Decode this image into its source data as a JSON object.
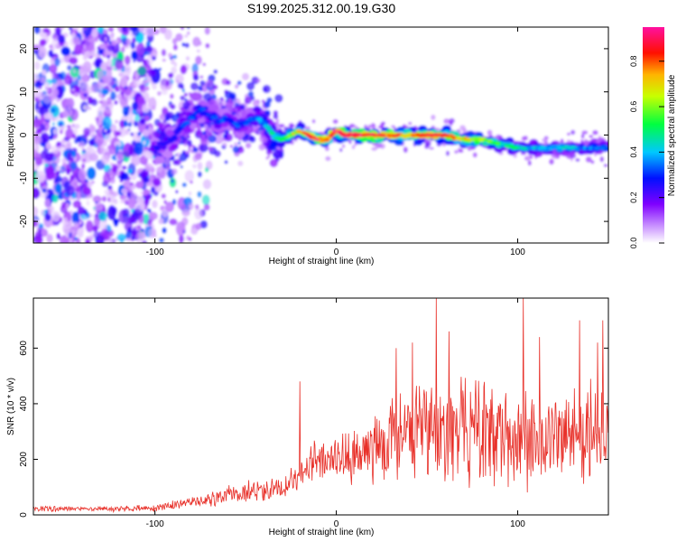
{
  "figure": {
    "title": "S199.2025.312.00.19.G30"
  },
  "chart_data": [
    {
      "type": "heatmap",
      "name": "spectrogram",
      "xlabel": "Height of straight line (km)",
      "ylabel": "Frequency (Hz)",
      "xlim": [
        -167,
        150
      ],
      "ylim": [
        -25,
        25
      ],
      "xticks": [
        -100,
        0,
        100
      ],
      "yticks": [
        -20,
        -10,
        0,
        10,
        20
      ],
      "colorbar": {
        "label": "Normalized spectral amplitude",
        "range": [
          0,
          0.95
        ],
        "ticks": [
          "0.0",
          "0.2",
          "0.4",
          "0.6",
          "0.8"
        ],
        "tick_values": [
          0.0,
          0.2,
          0.4,
          0.6,
          0.8
        ],
        "stops": [
          "#ffffff",
          "#7f00ff",
          "#0000ff",
          "#00ffff",
          "#00ff00",
          "#ffff00",
          "#ff0000",
          "#ff00a0"
        ]
      },
      "noise_region": {
        "x_range": [
          -167,
          -100
        ],
        "amplitude": 0.15
      },
      "track": {
        "description_free": true,
        "x": [
          -100,
          -95,
          -90,
          -85,
          -80,
          -75,
          -70,
          -65,
          -60,
          -55,
          -50,
          -45,
          -40,
          -35,
          -30,
          -25,
          -20,
          -15,
          -10,
          -5,
          0,
          5,
          10,
          20,
          30,
          40,
          50,
          60,
          70,
          80,
          90,
          100,
          110,
          120,
          130,
          140,
          150
        ],
        "freq": [
          -3,
          -2,
          -1,
          2,
          4,
          6,
          5,
          3,
          4,
          2,
          3,
          4,
          3,
          0,
          -1,
          0,
          1,
          0,
          -1,
          -1,
          1,
          0,
          0,
          0,
          0,
          0,
          0,
          0,
          -1,
          -1,
          -2,
          -3,
          -3,
          -3,
          -3,
          -3,
          -3
        ],
        "amplitude": [
          0.25,
          0.25,
          0.25,
          0.3,
          0.3,
          0.3,
          0.3,
          0.3,
          0.3,
          0.3,
          0.3,
          0.35,
          0.35,
          0.45,
          0.5,
          0.6,
          0.7,
          0.8,
          0.85,
          0.8,
          0.9,
          0.9,
          0.9,
          0.85,
          0.8,
          0.8,
          0.85,
          0.8,
          0.7,
          0.6,
          0.5,
          0.45,
          0.4,
          0.4,
          0.4,
          0.35,
          0.35
        ]
      }
    },
    {
      "type": "line",
      "name": "snr",
      "xlabel": "Height of straight line (km)",
      "ylabel": "SNR (10 * v/v)",
      "xlim": [
        -167,
        150
      ],
      "ylim": [
        0,
        780
      ],
      "xticks": [
        -100,
        0,
        100
      ],
      "yticks": [
        0,
        200,
        400,
        600
      ],
      "color": "#e8312a",
      "envelope": {
        "x": [
          -167,
          -120,
          -100,
          -90,
          -80,
          -70,
          -60,
          -50,
          -40,
          -30,
          -20,
          -10,
          0,
          10,
          20,
          30,
          40,
          50,
          60,
          70,
          80,
          90,
          100,
          110,
          120,
          130,
          140,
          150
        ],
        "mean": [
          22,
          22,
          24,
          35,
          45,
          55,
          70,
          80,
          90,
          100,
          150,
          200,
          190,
          210,
          250,
          270,
          290,
          300,
          300,
          300,
          290,
          280,
          280,
          270,
          280,
          300,
          290,
          280
        ],
        "amplitude": [
          10,
          10,
          12,
          15,
          20,
          25,
          30,
          40,
          45,
          50,
          70,
          80,
          80,
          100,
          130,
          160,
          180,
          190,
          190,
          190,
          180,
          180,
          180,
          170,
          170,
          170,
          170,
          160
        ]
      },
      "spikes": [
        {
          "x": -20,
          "y": 480
        },
        {
          "x": 33,
          "y": 600
        },
        {
          "x": 42,
          "y": 620
        },
        {
          "x": 55,
          "y": 780
        },
        {
          "x": 62,
          "y": 660
        },
        {
          "x": 103,
          "y": 780
        },
        {
          "x": 112,
          "y": 640
        },
        {
          "x": 134,
          "y": 700
        },
        {
          "x": 144,
          "y": 620
        },
        {
          "x": 147,
          "y": 700
        }
      ]
    }
  ]
}
